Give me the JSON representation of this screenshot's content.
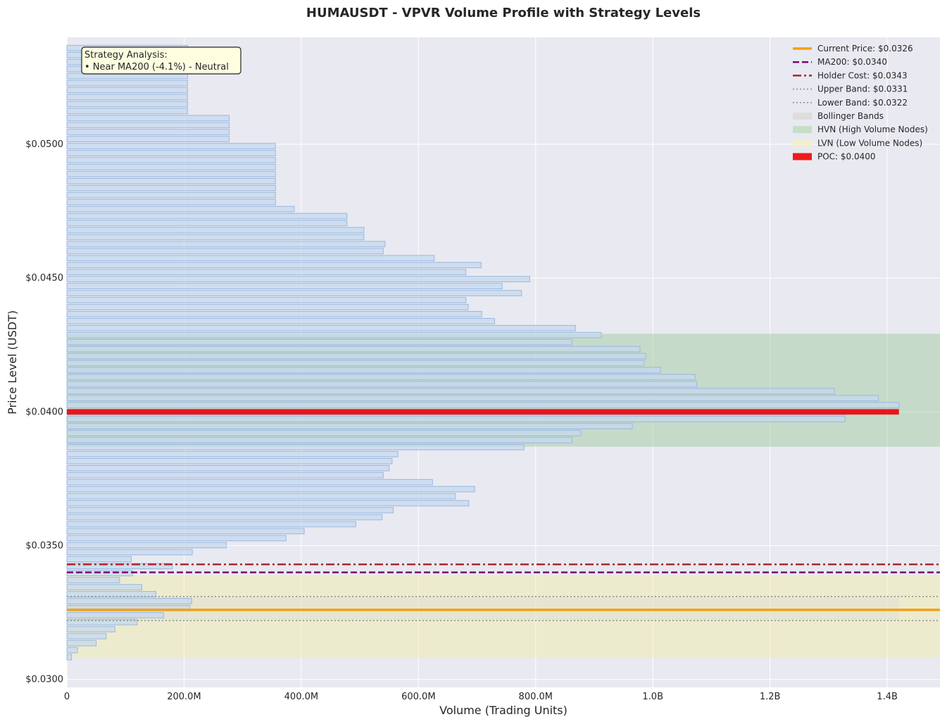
{
  "chart_data": {
    "type": "bar",
    "orientation": "horizontal",
    "title": "HUMAUSDT - VPVR Volume Profile with Strategy Levels",
    "xlabel": "Volume (Trading Units)",
    "ylabel": "Price Level (USDT)",
    "xlim": [
      0,
      1490000000
    ],
    "ylim": [
      0.0297,
      0.054
    ],
    "grid": true,
    "legend_position": "top-right",
    "x_ticks": [
      {
        "value": 0,
        "label": "0"
      },
      {
        "value": 200000000,
        "label": "200.0M"
      },
      {
        "value": 400000000,
        "label": "400.0M"
      },
      {
        "value": 600000000,
        "label": "600.0M"
      },
      {
        "value": 800000000,
        "label": "800.0M"
      },
      {
        "value": 1000000000,
        "label": "1.0B"
      },
      {
        "value": 1200000000,
        "label": "1.2B"
      },
      {
        "value": 1400000000,
        "label": "1.4B"
      }
    ],
    "y_ticks": [
      {
        "value": 0.03,
        "label": "$0.0300"
      },
      {
        "value": 0.035,
        "label": "$0.0350"
      },
      {
        "value": 0.04,
        "label": "$0.0400"
      },
      {
        "value": 0.045,
        "label": "$0.0450"
      },
      {
        "value": 0.05,
        "label": "$0.0500"
      }
    ],
    "bin_start": 0.03083,
    "bin_step": 0.0002617,
    "bar_height_fraction": 0.78,
    "volumes": [
      8000000,
      18000000,
      50000000,
      67000000,
      82000000,
      120000000,
      165000000,
      210000000,
      213000000,
      152000000,
      128000000,
      90000000,
      112000000,
      180000000,
      110000000,
      214000000,
      272000000,
      374000000,
      405000000,
      493000000,
      538000000,
      557000000,
      686000000,
      663000000,
      696000000,
      624000000,
      540000000,
      550000000,
      555000000,
      565000000,
      780000000,
      862000000,
      877000000,
      965000000,
      1328000000,
      1330000000,
      1420000000,
      1385000000,
      1310000000,
      1075000000,
      1072000000,
      1013000000,
      985000000,
      988000000,
      978000000,
      862000000,
      912000000,
      868000000,
      730000000,
      708000000,
      685000000,
      681000000,
      776000000,
      743000000,
      790000000,
      681000000,
      707000000,
      627000000,
      540000000,
      543000000,
      507000000,
      507000000,
      478000000,
      478000000,
      388000000,
      356000000,
      356000000,
      356000000,
      356000000,
      356000000,
      356000000,
      356000000,
      356000000,
      356000000,
      277000000,
      277000000,
      277000000,
      277000000,
      206000000,
      206000000,
      206000000,
      206000000,
      206000000,
      206000000,
      206000000,
      206000000,
      206000000,
      206000000
    ],
    "hvn_zone": [
      0.0387,
      0.04292
    ],
    "lvn_zone": [
      0.03082,
      0.0339
    ],
    "bollinger": {
      "upper": 0.0331,
      "lower": 0.0322,
      "max_volume": 1420000000
    },
    "poc": {
      "price": 0.04,
      "volume": 1420000000,
      "label": "POC: $0.0400"
    },
    "levels": [
      {
        "name": "current_price",
        "price": 0.0326,
        "label": "Current Price: $0.0326",
        "color": "#f5a10f",
        "style": "solid"
      },
      {
        "name": "ma200",
        "price": 0.034,
        "label": "MA200: $0.0340",
        "color": "#7b0a6b",
        "style": "dashed"
      },
      {
        "name": "holder_cost",
        "price": 0.0343,
        "label": "Holder Cost: $0.0343",
        "color": "#a8262f",
        "style": "dashdot"
      },
      {
        "name": "upper_band",
        "price": 0.0331,
        "label": "Upper Band: $0.0331",
        "color": "#8c8c8c",
        "style": "dotted"
      },
      {
        "name": "lower_band",
        "price": 0.0322,
        "label": "Lower Band: $0.0322",
        "color": "#8c8c8c",
        "style": "dotted"
      }
    ],
    "legend": [
      {
        "label": "Current Price: $0.0326",
        "kind": "line",
        "color": "#f5a10f",
        "style": "solid"
      },
      {
        "label": "MA200: $0.0340",
        "kind": "line",
        "color": "#7b0a6b",
        "style": "dashed"
      },
      {
        "label": "Holder Cost: $0.0343",
        "kind": "line",
        "color": "#a8262f",
        "style": "dashdot"
      },
      {
        "label": "Upper Band: $0.0331",
        "kind": "line",
        "color": "#8c8c8c",
        "style": "dotted"
      },
      {
        "label": "Lower Band: $0.0322",
        "kind": "line",
        "color": "#8c8c8c",
        "style": "dotted"
      },
      {
        "label": "Bollinger Bands",
        "kind": "patch",
        "color": "#d9d9d9"
      },
      {
        "label": "HVN (High Volume Nodes)",
        "kind": "patch",
        "color": "#bcdcbc"
      },
      {
        "label": "LVN (Low Volume Nodes)",
        "kind": "patch",
        "color": "#f1f0c4"
      },
      {
        "label": "POC: $0.0400",
        "kind": "patch",
        "color": "#ee1c1c"
      }
    ],
    "annotation": {
      "lines": [
        "Strategy Analysis:",
        "• Near MA200 (-4.1%) - Neutral"
      ],
      "position": "top-left"
    },
    "colors": {
      "plot_bg": "#e9e9f1",
      "grid": "#ffffff",
      "bar_fill": "#c4d8ee",
      "bar_edge": "#9bb8e0",
      "hvn_fill": "#9ac79a",
      "lvn_fill": "#f1eda3",
      "bollinger_fill": "#d9d9d9",
      "poc_fill": "#e8161b",
      "annotation_bg": "#fdfde0"
    }
  }
}
